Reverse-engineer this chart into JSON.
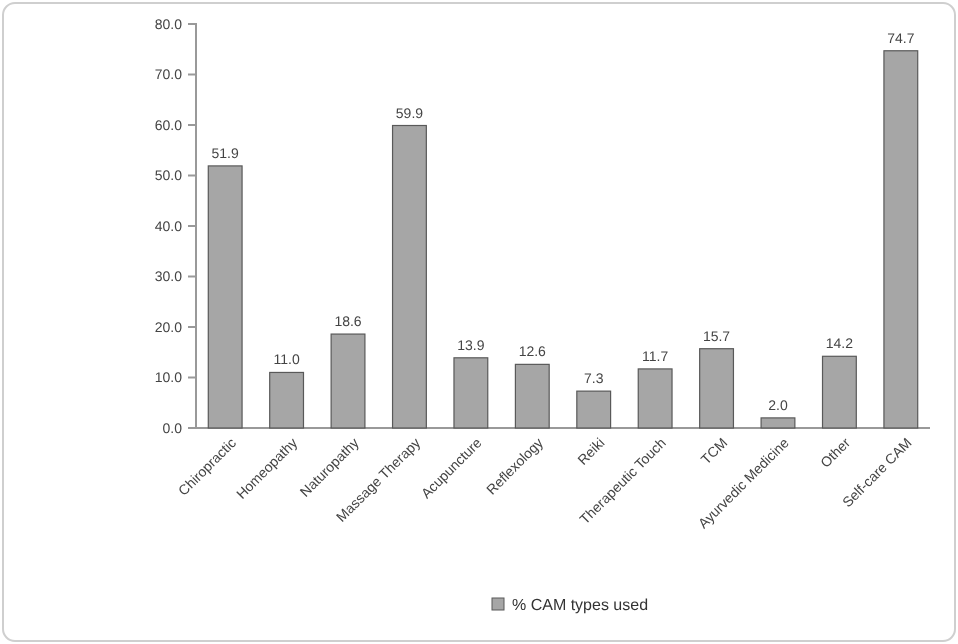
{
  "chart_data": {
    "type": "bar",
    "categories": [
      "Chiropractic",
      "Homeopathy",
      "Naturopathy",
      "Massage Therapy",
      "Acupuncture",
      "Reflexology",
      "Reiki",
      "Therapeutic Touch",
      "TCM",
      "Ayurvedic Medicine",
      "Other",
      "Self-care CAM"
    ],
    "series": [
      {
        "name": "% CAM types used",
        "color": "#a6a6a6",
        "values": [
          51.9,
          11.0,
          18.6,
          59.9,
          13.9,
          12.6,
          7.3,
          11.7,
          15.7,
          2.0,
          14.2,
          74.7
        ],
        "value_labels": [
          "51.9",
          "11.0",
          "18.6",
          "59.9",
          "13.9",
          "12.6",
          "7.3",
          "11.7",
          "15.7",
          "2.0",
          "14.2",
          "74.7"
        ]
      }
    ],
    "ylim": [
      0,
      80
    ],
    "yticks": [
      {
        "value": 0,
        "label": "0.0"
      },
      {
        "value": 10,
        "label": "10.0"
      },
      {
        "value": 20,
        "label": "20.0"
      },
      {
        "value": 30,
        "label": "30.0"
      },
      {
        "value": 40,
        "label": "40.0"
      },
      {
        "value": 50,
        "label": "50.0"
      },
      {
        "value": 60,
        "label": "60.0"
      },
      {
        "value": 70,
        "label": "70.0"
      },
      {
        "value": 80,
        "label": "80.0"
      }
    ],
    "grid": false,
    "legend": "bottom"
  }
}
